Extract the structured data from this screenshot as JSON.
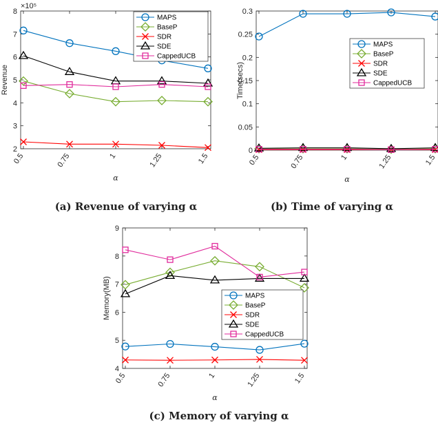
{
  "figures": [
    {
      "caption": "(a) Revenue of varying α",
      "chart": {
        "type": "line",
        "x": [
          0.5,
          0.75,
          1,
          1.25,
          1.5
        ],
        "xticklabels": [
          "0.5",
          "0.75",
          "1",
          "1.25",
          "1.5"
        ],
        "xlabel": "α",
        "ylabel": "Revenue",
        "ylim": [
          2,
          8
        ],
        "yticks": [
          2,
          3,
          4,
          5,
          6,
          7,
          8
        ],
        "yticklabels": [
          "2",
          "3",
          "4",
          "5",
          "6",
          "7",
          "8"
        ],
        "yexponent": "×10⁵",
        "legend": "top-right",
        "series": [
          {
            "name": "MAPS",
            "marker": "circle",
            "color": "#0072BD",
            "values": [
              7.15,
              6.6,
              6.25,
              5.85,
              5.5
            ]
          },
          {
            "name": "BaseP",
            "marker": "diamond",
            "color": "#77AC30",
            "values": [
              4.95,
              4.4,
              4.05,
              4.1,
              4.05
            ]
          },
          {
            "name": "SDR",
            "marker": "x",
            "color": "#FF0000",
            "values": [
              2.3,
              2.2,
              2.2,
              2.15,
              2.05
            ]
          },
          {
            "name": "SDE",
            "marker": "triangle",
            "color": "#000000",
            "values": [
              6.05,
              5.35,
              4.95,
              4.95,
              4.85
            ]
          },
          {
            "name": "CappedUCB",
            "marker": "square",
            "color": "#E02A9B",
            "values": [
              4.75,
              4.8,
              4.7,
              4.8,
              4.7
            ]
          }
        ]
      }
    },
    {
      "caption": "(b) Time of varying α",
      "chart": {
        "type": "line",
        "x": [
          0.5,
          0.75,
          1,
          1.25,
          1.5
        ],
        "xticklabels": [
          "0.5",
          "0.75",
          "1",
          "1.25",
          "1.5"
        ],
        "xlabel": "α",
        "ylabel": "Time(secs)",
        "ylim": [
          0,
          0.3
        ],
        "yticks": [
          0,
          0.05,
          0.1,
          0.15,
          0.2,
          0.25,
          0.3
        ],
        "yticklabels": [
          "0",
          "0.05",
          "0.1",
          "0.15",
          "0.2",
          "0.25",
          "0.3"
        ],
        "legend": "right",
        "series": [
          {
            "name": "MAPS",
            "marker": "circle",
            "color": "#0072BD",
            "values": [
              0.245,
              0.294,
              0.294,
              0.297,
              0.288
            ]
          },
          {
            "name": "BaseP",
            "marker": "diamond",
            "color": "#77AC30",
            "values": [
              0.003,
              0.003,
              0.003,
              0.002,
              0.003
            ]
          },
          {
            "name": "SDR",
            "marker": "x",
            "color": "#FF0000",
            "values": [
              0.001,
              0.001,
              0.001,
              0.001,
              0.001
            ]
          },
          {
            "name": "SDE",
            "marker": "triangle",
            "color": "#000000",
            "values": [
              0.004,
              0.005,
              0.005,
              0.003,
              0.005
            ]
          },
          {
            "name": "CappedUCB",
            "marker": "square",
            "color": "#E02A9B",
            "values": [
              0.002,
              0.002,
              0.002,
              0.001,
              0.002
            ]
          }
        ]
      }
    },
    {
      "caption": "(c) Memory of varying α",
      "chart": {
        "type": "line",
        "x": [
          0.5,
          0.75,
          1,
          1.25,
          1.5
        ],
        "xticklabels": [
          "0.5",
          "0.75",
          "1",
          "1.25",
          "1.5"
        ],
        "xlabel": "α",
        "ylabel": "Memory(MB)",
        "ylim": [
          4,
          9
        ],
        "yticks": [
          4,
          5,
          6,
          7,
          8,
          9
        ],
        "yticklabels": [
          "4",
          "5",
          "6",
          "7",
          "8",
          "9"
        ],
        "legend": "bottom-right",
        "series": [
          {
            "name": "MAPS",
            "marker": "circle",
            "color": "#0072BD",
            "values": [
              4.78,
              4.87,
              4.77,
              4.66,
              4.88
            ]
          },
          {
            "name": "BaseP",
            "marker": "diamond",
            "color": "#77AC30",
            "values": [
              6.98,
              7.42,
              7.83,
              7.62,
              6.87
            ]
          },
          {
            "name": "SDR",
            "marker": "x",
            "color": "#FF0000",
            "values": [
              4.3,
              4.29,
              4.3,
              4.32,
              4.29
            ]
          },
          {
            "name": "SDE",
            "marker": "triangle",
            "color": "#000000",
            "values": [
              6.65,
              7.3,
              7.14,
              7.2,
              7.2
            ]
          },
          {
            "name": "CappedUCB",
            "marker": "square",
            "color": "#E02A9B",
            "values": [
              8.22,
              7.87,
              8.35,
              7.25,
              7.43
            ]
          }
        ]
      }
    }
  ]
}
